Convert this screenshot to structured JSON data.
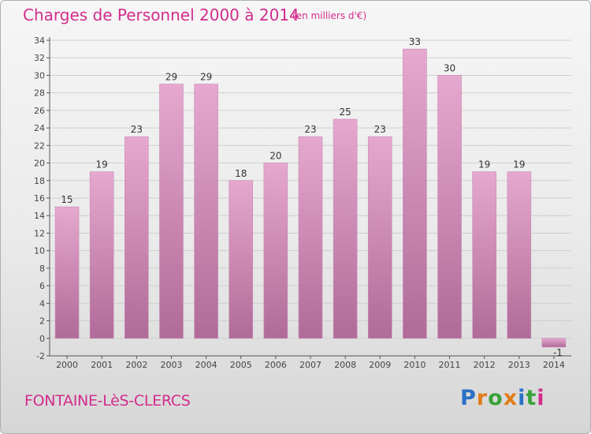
{
  "header": {
    "title": "Charges de Personnel 2000 à 2014",
    "subtitle": "(en milliers d'€)"
  },
  "footer": {
    "place": "FONTAINE-LèS-CLERCS",
    "logo": "Proxiti",
    "logo_colors": [
      "#2a6fc6",
      "#e07d1a",
      "#3aa23a",
      "#e07d1a",
      "#2a6fc6",
      "#3aa23a",
      "#d22d8c"
    ]
  },
  "colors": {
    "accent": "#d22d8c",
    "bar_light": "#e6a8cf",
    "bar_dark": "#b06b98",
    "axis": "#555555",
    "grid": "#cfcfcf"
  },
  "chart_data": {
    "type": "bar",
    "title": "Charges de Personnel 2000 à 2014",
    "subtitle": "(en milliers d'€)",
    "categories": [
      "2000",
      "2001",
      "2002",
      "2003",
      "2004",
      "2005",
      "2006",
      "2007",
      "2008",
      "2009",
      "2010",
      "2011",
      "2012",
      "2013",
      "2014"
    ],
    "values": [
      15,
      19,
      23,
      29,
      29,
      18,
      20,
      23,
      25,
      23,
      33,
      30,
      19,
      19,
      -1
    ],
    "ylim": [
      -2,
      34
    ],
    "yticks": [
      -2,
      0,
      2,
      4,
      6,
      8,
      10,
      12,
      14,
      16,
      18,
      20,
      22,
      24,
      26,
      28,
      30,
      32,
      34
    ],
    "grid": true,
    "legend": "none"
  }
}
